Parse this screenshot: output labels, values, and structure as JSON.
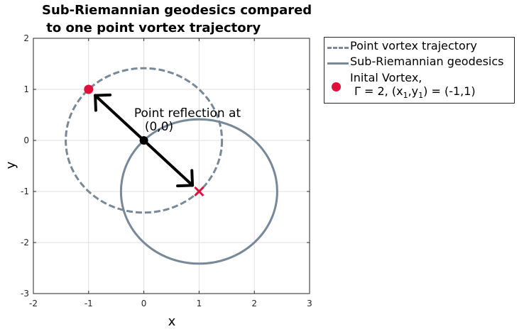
{
  "chart_data": {
    "type": "line",
    "title_lines": [
      "Sub-Riemannian geodesics compared",
      " to one point vortex trajectory"
    ],
    "xlabel": "x",
    "ylabel": "y",
    "xlim": [
      -2,
      3
    ],
    "ylim": [
      -3,
      2
    ],
    "xticks": [
      -2,
      -1,
      0,
      1,
      2,
      3
    ],
    "yticks": [
      -3,
      -2,
      -1,
      0,
      1,
      2
    ],
    "grid": true,
    "legend_placement": "outside-right",
    "series": [
      {
        "name": "Point vortex trajectory",
        "kind": "circle",
        "style": "dashed",
        "color": "#778899",
        "center": [
          0,
          0
        ],
        "radius": 1.414
      },
      {
        "name": "Sub-Riemannian geodesics",
        "kind": "circle",
        "style": "solid",
        "color": "#778899",
        "center": [
          1,
          -1
        ],
        "radius": 1.414
      },
      {
        "name": "Inital Vortex,",
        "kind": "point",
        "color": "#e0103a",
        "x": -1,
        "y": 1
      }
    ],
    "legend": {
      "entry1": "Point vortex trajectory",
      "entry2": "Sub-Riemannian geodesics",
      "entry3_line1": "Inital Vortex,",
      "entry3_line2_a": "Γ  = 2, (x",
      "entry3_sub1": "1",
      "entry3_line2_b": ",y",
      "entry3_sub2": "1",
      "entry3_line2_c": ") = (-1,1)"
    },
    "annotations": {
      "label_line1": "Point reflection at",
      "label_line2": "(0,0)",
      "origin_point": [
        0,
        0
      ],
      "end_point": [
        1,
        -1
      ],
      "arrow_from": [
        0,
        0
      ],
      "arrow_to_a": [
        -0.88,
        0.88
      ],
      "arrow_to_b": [
        0.88,
        -0.88
      ]
    },
    "colors": {
      "curve": "#778899",
      "vortex": "#e0103a",
      "arrow": "#000000",
      "grid": "#dfdfdf",
      "axes": "#262626"
    }
  }
}
